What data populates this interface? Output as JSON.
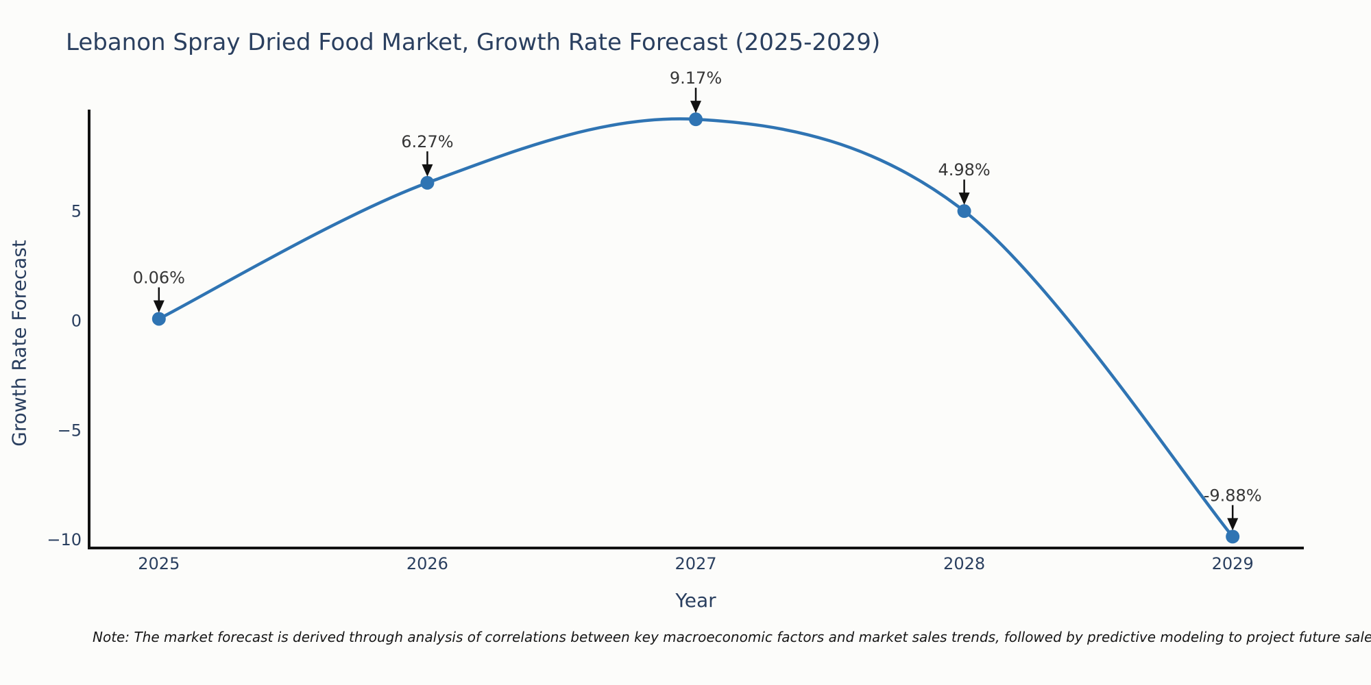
{
  "note": {
    "text": "Note: The market forecast is derived through analysis of correlations between key macroeconomic factors and market sales trends, followed by predictive modeling to project future sales."
  },
  "chart_data": {
    "type": "line",
    "title": "Lebanon Spray Dried Food Market, Growth Rate Forecast (2025-2029)",
    "xlabel": "Year",
    "ylabel": "Growth Rate Forecast",
    "x": [
      2025,
      2026,
      2027,
      2028,
      2029
    ],
    "values": [
      0.06,
      6.27,
      9.17,
      4.98,
      -9.88
    ],
    "point_labels": [
      "0.06%",
      "6.27%",
      "9.17%",
      "4.98%",
      "-9.88%"
    ],
    "xtick_labels": [
      "2025",
      "2026",
      "2027",
      "2028",
      "2029"
    ],
    "yticks": [
      5,
      0,
      -5,
      -10
    ],
    "ytick_labels": [
      "5",
      "0",
      "−5",
      "−10"
    ],
    "xlim": [
      2024.74,
      2029.26
    ],
    "ylim": [
      -10.4,
      9.55
    ],
    "line_shape": "spline",
    "grid": false,
    "legend": "none",
    "annotations_have_arrows": true,
    "colors": {
      "line": "#2f74b3",
      "marker": "#2f74b3",
      "axis": "#111111",
      "tick_text": "#2a3f5f",
      "annotation_text": "#363636",
      "arrow": "#111111",
      "title_text": "#2a3f5f"
    }
  }
}
